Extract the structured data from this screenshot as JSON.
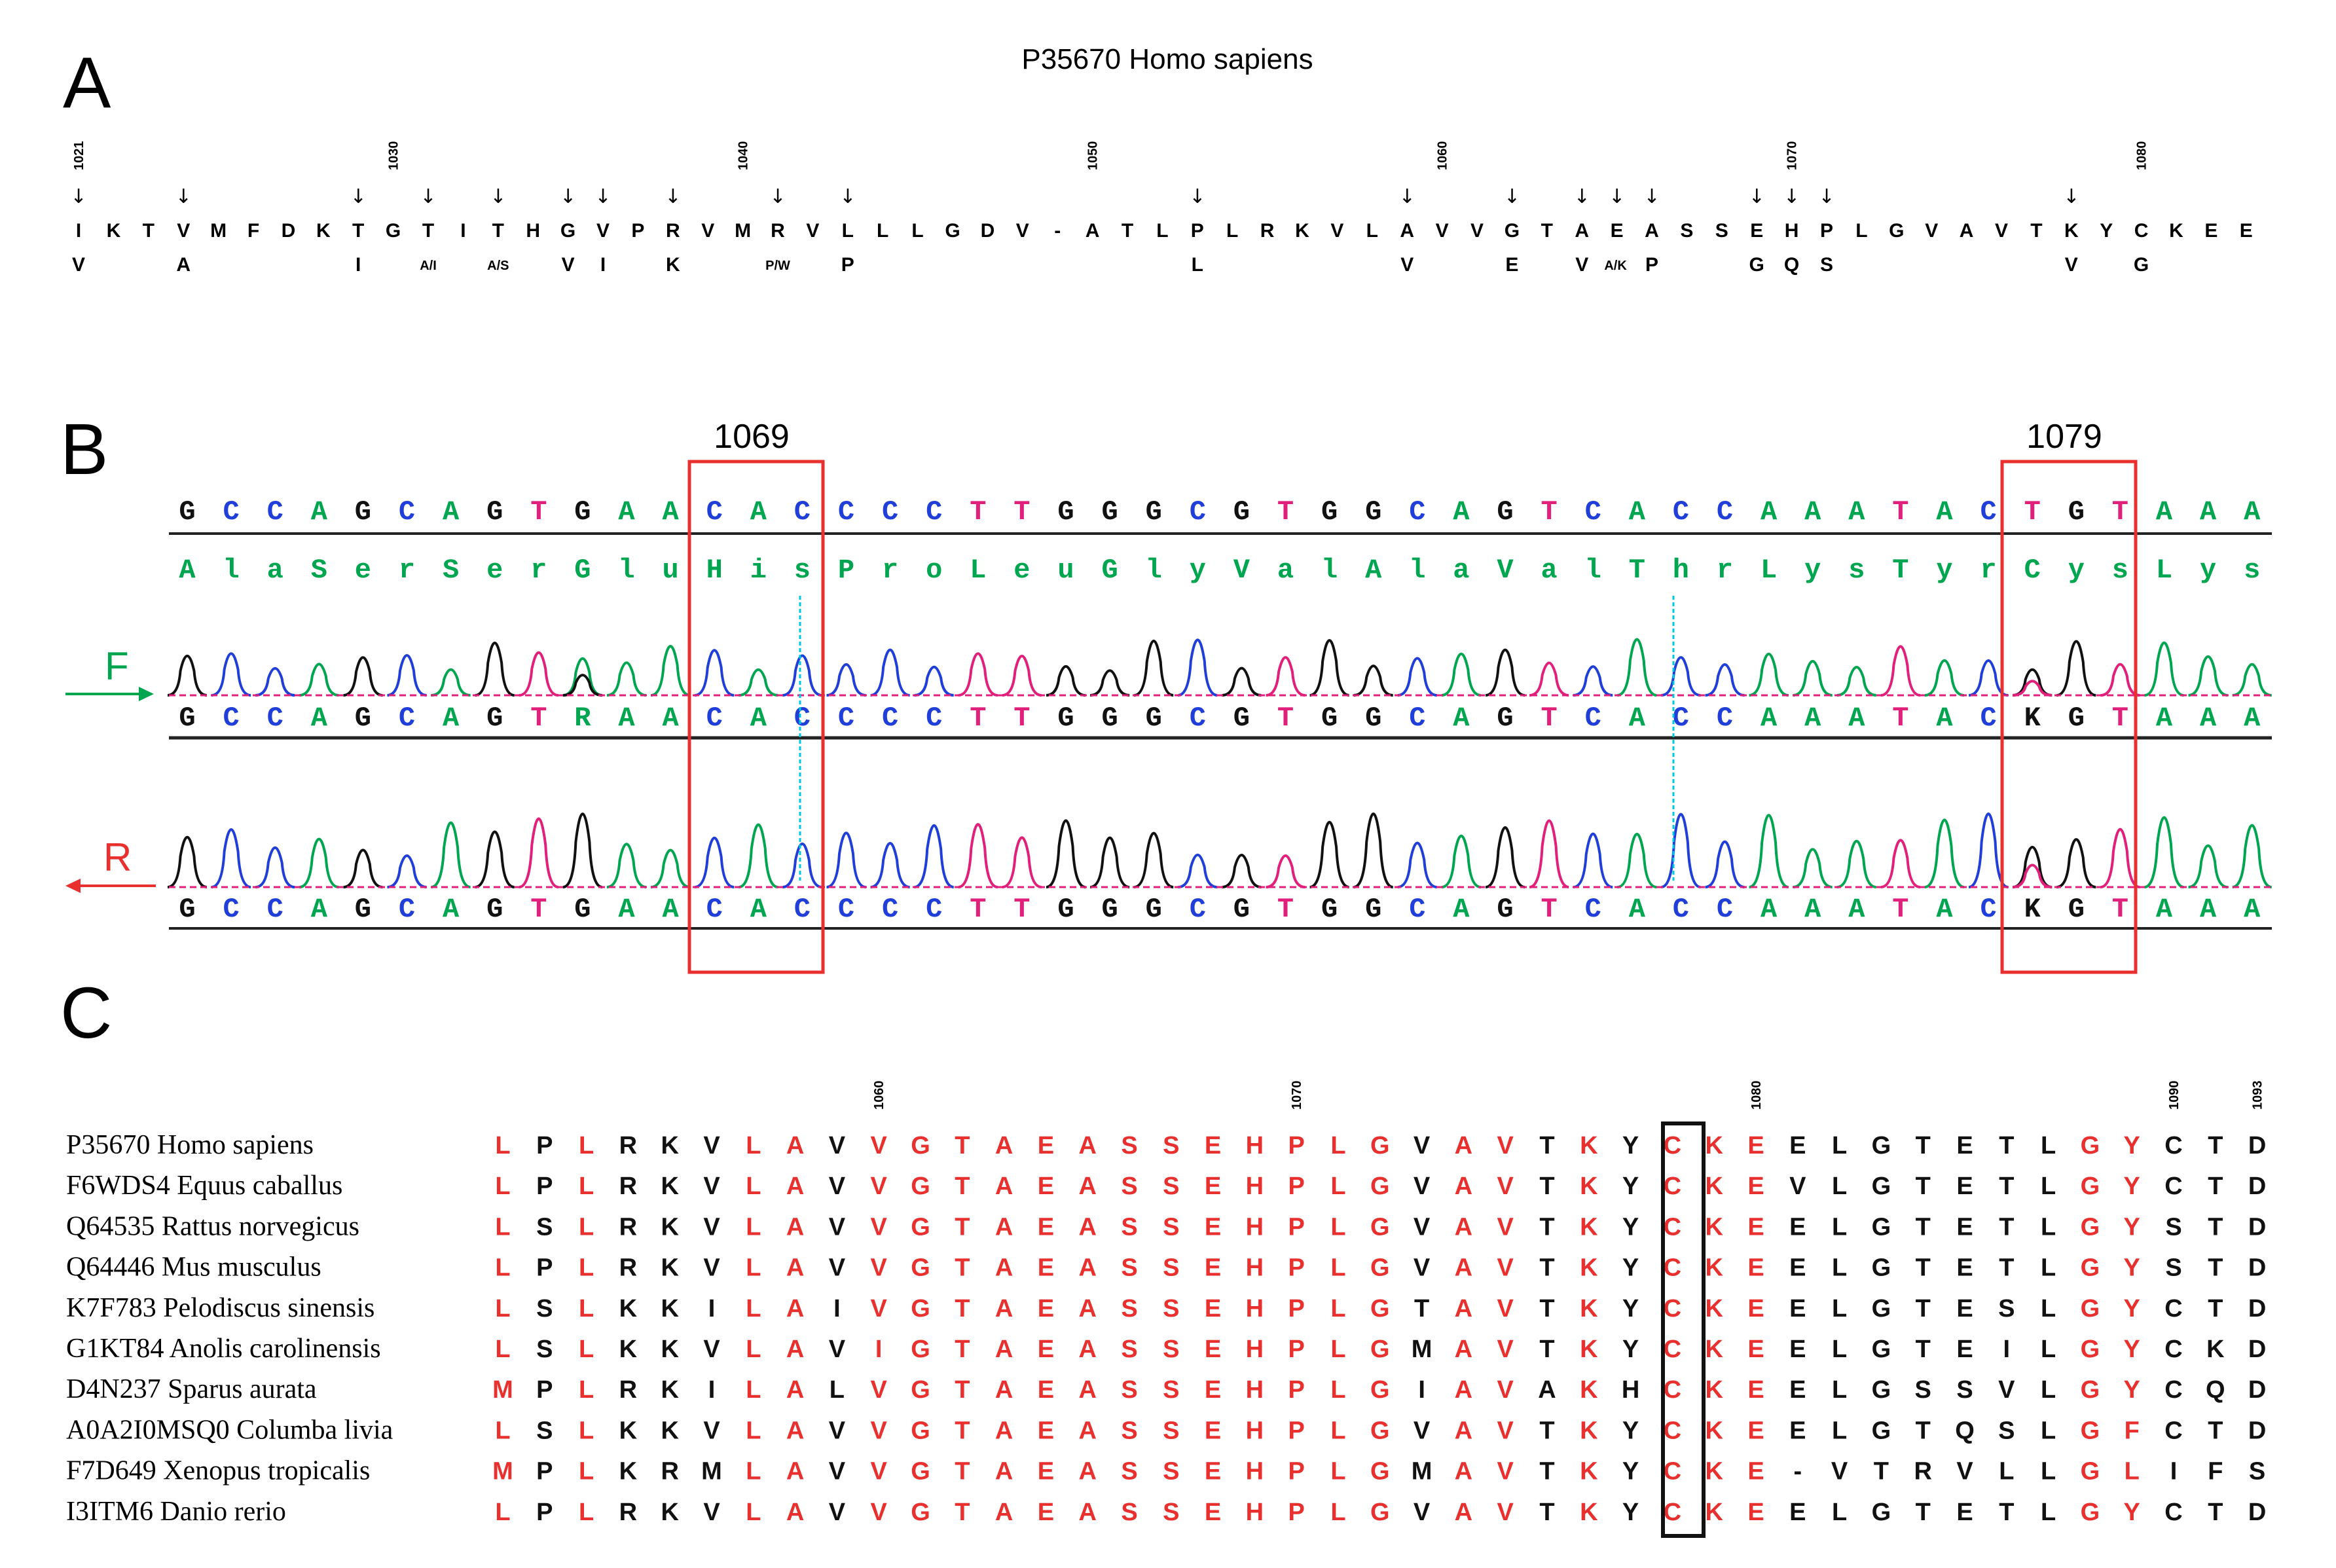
{
  "panel_a": {
    "letter": "A",
    "title": "P35670 Homo sapiens",
    "position_labels": [
      "1021",
      "1030",
      "1040",
      "1050",
      "1060",
      "1070",
      "1080"
    ],
    "sequence": [
      "I",
      "K",
      "T",
      "V",
      "M",
      "F",
      "D",
      "K",
      "T",
      "G",
      "T",
      "I",
      "T",
      "H",
      "G",
      "V",
      "P",
      "R",
      "V",
      "M",
      "R",
      "V",
      "L",
      "L",
      "L",
      "G",
      "D",
      "V",
      "-",
      "A",
      "T",
      "L",
      "P",
      "L",
      "R",
      "K",
      "V",
      "L",
      "A",
      "V",
      "V",
      "G",
      "T",
      "A",
      "E",
      "A",
      "S",
      "S",
      "E",
      "H",
      "P",
      "L",
      "G",
      "V",
      "A",
      "V",
      "T",
      "K",
      "Y",
      "C",
      "K",
      "E",
      "E"
    ],
    "variant_text": [
      "V",
      "A",
      "I",
      "A/I",
      "A/S",
      "V",
      "I",
      "K",
      "P/W",
      "P",
      "L",
      "V",
      "E",
      "V",
      "A/K",
      "P",
      "G",
      "Q",
      "S",
      "V",
      "G"
    ]
  },
  "panel_b": {
    "letter": "B",
    "box_labels": [
      "1069",
      "1079"
    ],
    "reference_seq": [
      "G",
      "C",
      "C",
      "A",
      "G",
      "C",
      "A",
      "G",
      "T",
      "G",
      "A",
      "A",
      "C",
      "A",
      "C",
      "C",
      "C",
      "C",
      "T",
      "T",
      "G",
      "G",
      "G",
      "C",
      "G",
      "T",
      "G",
      "G",
      "C",
      "A",
      "G",
      "T",
      "C",
      "A",
      "C",
      "C",
      "A",
      "A",
      "A",
      "T",
      "A",
      "C",
      "T",
      "G",
      "T",
      "A",
      "A",
      "A"
    ],
    "protein": [
      "A",
      "l",
      "a",
      "S",
      "e",
      "r",
      "S",
      "e",
      "r",
      "G",
      "l",
      "u",
      "H",
      "i",
      "s",
      "P",
      "r",
      "o",
      "L",
      "e",
      "u",
      "G",
      "l",
      "y",
      "V",
      "a",
      "l",
      "A",
      "l",
      "a",
      "V",
      "a",
      "l",
      "T",
      "h",
      "r",
      "L",
      "y",
      "s",
      "T",
      "y",
      "r",
      "C",
      "y",
      "s",
      "L",
      "y",
      "s"
    ],
    "forward_read": [
      "G",
      "C",
      "C",
      "A",
      "G",
      "C",
      "A",
      "G",
      "T",
      "R",
      "A",
      "A",
      "C",
      "A",
      "C",
      "C",
      "C",
      "C",
      "T",
      "T",
      "G",
      "G",
      "G",
      "C",
      "G",
      "T",
      "G",
      "G",
      "C",
      "A",
      "G",
      "T",
      "C",
      "A",
      "C",
      "C",
      "A",
      "A",
      "A",
      "T",
      "A",
      "C",
      "K",
      "G",
      "T",
      "A",
      "A",
      "A"
    ],
    "reverse_read": [
      "G",
      "C",
      "C",
      "A",
      "G",
      "C",
      "A",
      "G",
      "T",
      "G",
      "A",
      "A",
      "C",
      "A",
      "C",
      "C",
      "C",
      "C",
      "T",
      "T",
      "G",
      "G",
      "G",
      "C",
      "G",
      "T",
      "G",
      "G",
      "C",
      "A",
      "G",
      "T",
      "C",
      "A",
      "C",
      "C",
      "A",
      "A",
      "A",
      "T",
      "A",
      "C",
      "K",
      "G",
      "T",
      "A",
      "A",
      "A"
    ],
    "forward_label": "F",
    "reverse_label": "R",
    "colors": {
      "A": "#00a550",
      "C": "#1f3fd8",
      "G": "#111111",
      "T": "#e0207a",
      "R": "#00a550",
      "K": "#111111",
      "box": "#e8312f",
      "line": "#00c8e0",
      "forward": "#00a550",
      "reverse": "#e8312f"
    }
  },
  "panel_c": {
    "letter": "C",
    "position_labels": [
      "1060",
      "1070",
      "1080",
      "1090",
      "1093"
    ],
    "species": [
      {
        "name": "P35670 Homo sapiens",
        "seq": "LPLRKVLAVVGTAEASSEHPLGVAVTKYCKEELGTETLGYCTD"
      },
      {
        "name": "F6WDS4 Equus caballus",
        "seq": "LPLRKVLAVVGTAEASSEHPLGVAVTKYCKEVLGTETLGYCTD"
      },
      {
        "name": "Q64535 Rattus norvegicus",
        "seq": "LSLRKVLAVVGTAEASSEHPLGVAVTKYCKEELGTETLGYSTD"
      },
      {
        "name": "Q64446 Mus musculus",
        "seq": "LPLRKVLAVVGTAEASSEHPLGVAVTKYCKEELGTETLGYSTD"
      },
      {
        "name": "K7F783 Pelodiscus sinensis",
        "seq": "LSLKKILAIVGTAEASSEHPLGTAVTKYCKEELGTESLGYCTD"
      },
      {
        "name": "G1KT84 Anolis carolinensis",
        "seq": "LSLKKVLAVIGTAEASSEHPLGMAVTKYCKEELGTEILGYCKD"
      },
      {
        "name": "D4N237 Sparus aurata",
        "seq": "MPLRKILALVGTAEASSEHPLGIAVAKHCKEELGSSVLGYCQD"
      },
      {
        "name": "A0A2I0MSQ0 Columba livia",
        "seq": "LSLKKVLAVVGTAEASSEHPLGVAVTKYCKEELGTQSLGFCTD"
      },
      {
        "name": "F7D649 Xenopus tropicalis",
        "seq": "MPLKRMLAVVGTAEASSEHPLGMAVTKYCKE-VTRVLLGLIFS"
      },
      {
        "name": "I3ITM6 Danio rerio",
        "seq": "LPLRKVLAVVGTAEASSEHPLGVAVTKYCKEELGTETLGYCTD"
      }
    ],
    "conserved_red_columns": [
      0,
      2,
      6,
      7,
      9,
      10,
      11,
      12,
      13,
      14,
      15,
      16,
      17,
      18,
      19,
      20,
      21,
      23,
      24,
      26,
      28,
      29,
      30,
      38,
      39
    ],
    "colors": {
      "conserved": "#e8312f",
      "normal": "#111111",
      "box": "#111111"
    }
  }
}
